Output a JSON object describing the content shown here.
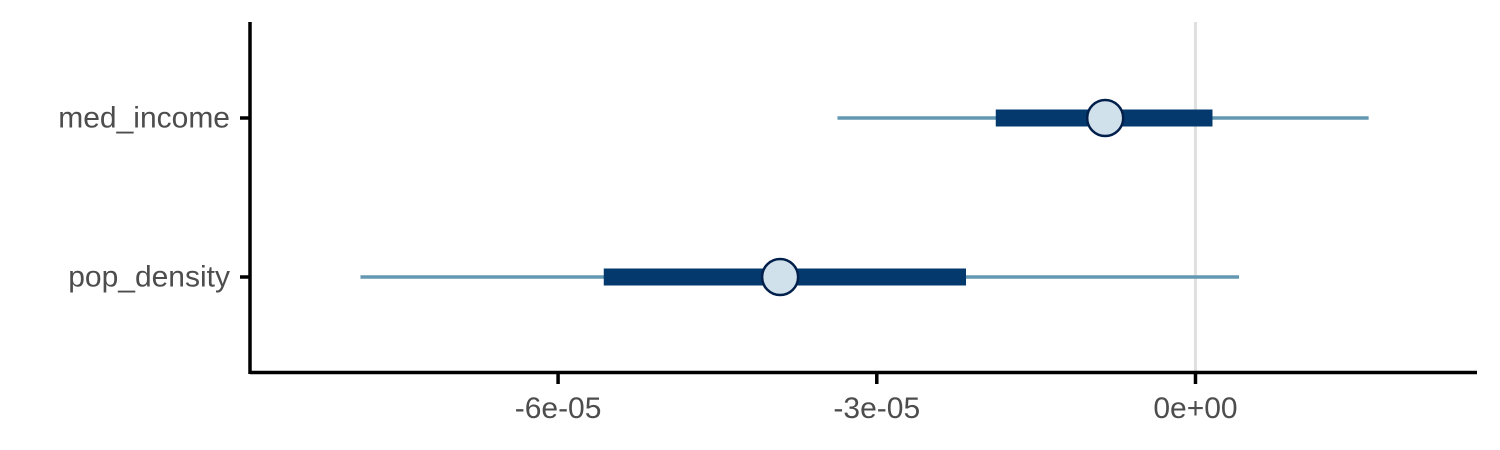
{
  "chart_data": {
    "type": "interval",
    "title": "",
    "xlabel": "",
    "ylabel": "",
    "xlim": [
      -8.9e-05,
      2.65e-05
    ],
    "x_ticks": [
      {
        "value": -6e-05,
        "label": "-6e-05"
      },
      {
        "value": -3e-05,
        "label": "-3e-05"
      },
      {
        "value": 0,
        "label": "0e+00"
      }
    ],
    "reference_line": 0,
    "grid": false,
    "legend": "none",
    "categories": [
      "med_income",
      "pop_density"
    ],
    "intervals": [
      {
        "label": "med_income",
        "estimate": -8.5e-06,
        "inner": [
          -1.88e-05,
          1.6e-06
        ],
        "outer": [
          -3.37e-05,
          1.63e-05
        ]
      },
      {
        "label": "pop_density",
        "estimate": -3.91e-05,
        "inner": [
          -5.57e-05,
          -2.16e-05
        ],
        "outer": [
          -7.86e-05,
          4.1e-06
        ]
      }
    ],
    "colors": {
      "outer": "#6497b1",
      "inner": "#03396c",
      "point_fill": "#d1e1ec",
      "point_stroke": "#011f4b",
      "reference_line": "#e0e0e0",
      "axis": "#000000",
      "text": "#4d4d4d"
    }
  }
}
